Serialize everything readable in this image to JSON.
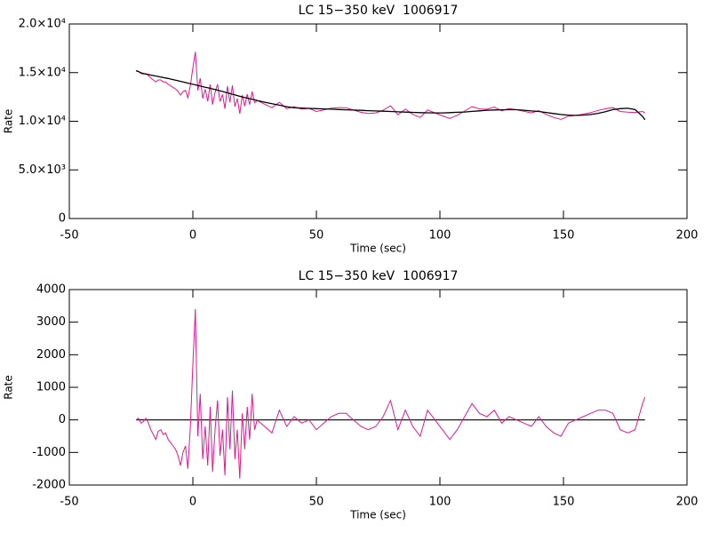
{
  "chart_data": [
    {
      "type": "line",
      "title": "LC 15−350 keV  1006917",
      "xlabel": "Time (sec)",
      "ylabel": "Rate",
      "xlim": [
        -50,
        200
      ],
      "xticks": [
        -50,
        0,
        50,
        100,
        150,
        200
      ],
      "ylim": [
        0,
        20000
      ],
      "yticks": [
        0,
        {
          "value": 5000,
          "label": "5.0×10³"
        },
        {
          "value": 10000,
          "label": "1.0×10⁴"
        },
        {
          "value": 15000,
          "label": "1.5×10⁴"
        },
        {
          "value": 20000,
          "label": "2.0×10⁴"
        }
      ],
      "x": [
        -23,
        -22,
        -21,
        -20,
        -19,
        -18,
        -17,
        -16,
        -15,
        -14,
        -13,
        -12,
        -11,
        -10,
        -9,
        -8,
        -7,
        -6,
        -5,
        -4,
        -3,
        -2,
        -1,
        0,
        1,
        2,
        3,
        4,
        5,
        6,
        7,
        8,
        9,
        10,
        11,
        12,
        13,
        14,
        15,
        16,
        17,
        18,
        19,
        20,
        21,
        22,
        23,
        24,
        25,
        26,
        29,
        32,
        35,
        38,
        41,
        44,
        47,
        50,
        53,
        56,
        59,
        62,
        65,
        68,
        71,
        74,
        77,
        80,
        83,
        86,
        89,
        92,
        95,
        98,
        101,
        104,
        107,
        110,
        113,
        116,
        119,
        122,
        125,
        128,
        131,
        134,
        137,
        140,
        143,
        146,
        149,
        152,
        155,
        158,
        161,
        164,
        167,
        170,
        173,
        176,
        179,
        182,
        183
      ],
      "series": [
        {
          "color": "#e8168c",
          "values": [
            15200,
            15150,
            14900,
            14850,
            14900,
            14700,
            14450,
            14250,
            14050,
            14250,
            14250,
            14050,
            14050,
            13800,
            13640,
            13480,
            13320,
            13060,
            12700,
            13040,
            13180,
            12420,
            13660,
            15500,
            17140,
            13180,
            14420,
            12360,
            13300,
            12040,
            13780,
            11720,
            12960,
            13800,
            12030,
            12760,
            11290,
            13620,
            11950,
            13680,
            11510,
            12340,
            10770,
            12700,
            11540,
            12780,
            11720,
            13060,
            11900,
            12140,
            11760,
            11400,
            11950,
            11300,
            11490,
            11250,
            11320,
            11000,
            11170,
            11340,
            11410,
            11380,
            11150,
            10920,
            10790,
            10860,
            11130,
            11600,
            10670,
            11240,
            10710,
            10390,
            11170,
            10860,
            10560,
            10290,
            10620,
            11050,
            11510,
            11270,
            11230,
            11460,
            11080,
            11300,
            11190,
            11030,
            10860,
            11100,
            10700,
            10390,
            10190,
            10530,
            10600,
            10730,
            10890,
            11110,
            11290,
            11400,
            11000,
            10930,
            10900,
            11000,
            10850
          ]
        },
        {
          "color": "#000000",
          "values": [
            15200,
            15100,
            15000,
            14900,
            14850,
            14800,
            14750,
            14700,
            14650,
            14600,
            14550,
            14500,
            14450,
            14400,
            14340,
            14280,
            14220,
            14160,
            14100,
            14040,
            13980,
            13920,
            13860,
            13800,
            13740,
            13680,
            13620,
            13560,
            13500,
            13440,
            13380,
            13320,
            13260,
            13200,
            13130,
            13060,
            12990,
            12920,
            12850,
            12780,
            12710,
            12640,
            12570,
            12500,
            12440,
            12380,
            12320,
            12260,
            12200,
            12140,
            11960,
            11800,
            11650,
            11500,
            11390,
            11350,
            11320,
            11300,
            11270,
            11240,
            11210,
            11180,
            11150,
            11120,
            11090,
            11060,
            11030,
            11000,
            10970,
            10940,
            10910,
            10890,
            10870,
            10860,
            10860,
            10890,
            10920,
            10950,
            11010,
            11070,
            11130,
            11160,
            11180,
            11200,
            11190,
            11130,
            11060,
            11000,
            10900,
            10790,
            10690,
            10630,
            10600,
            10630,
            10690,
            10810,
            10990,
            11200,
            11300,
            11330,
            11200,
            10500,
            10150
          ]
        }
      ]
    },
    {
      "type": "line",
      "title": "LC 15−350 keV  1006917",
      "xlabel": "Time (sec)",
      "ylabel": "Rate",
      "xlim": [
        -50,
        200
      ],
      "xticks": [
        -50,
        0,
        50,
        100,
        150,
        200
      ],
      "ylim": [
        -2000,
        4000
      ],
      "yticks": [
        -2000,
        -1000,
        0,
        1000,
        2000,
        3000,
        4000
      ],
      "x": [
        -23,
        -22,
        -21,
        -20,
        -19,
        -18,
        -17,
        -16,
        -15,
        -14,
        -13,
        -12,
        -11,
        -10,
        -9,
        -8,
        -7,
        -6,
        -5,
        -4,
        -3,
        -2,
        -1,
        0,
        1,
        2,
        3,
        4,
        5,
        6,
        7,
        8,
        9,
        10,
        11,
        12,
        13,
        14,
        15,
        16,
        17,
        18,
        19,
        20,
        21,
        22,
        23,
        24,
        25,
        26,
        29,
        32,
        35,
        38,
        41,
        44,
        47,
        50,
        53,
        56,
        59,
        62,
        65,
        68,
        71,
        74,
        77,
        80,
        83,
        86,
        89,
        92,
        95,
        98,
        101,
        104,
        107,
        110,
        113,
        116,
        119,
        122,
        125,
        128,
        131,
        134,
        137,
        140,
        143,
        146,
        149,
        152,
        155,
        158,
        161,
        164,
        167,
        170,
        173,
        176,
        179,
        182,
        183
      ],
      "series": [
        {
          "color": "#e8168c",
          "values": [
            0,
            50,
            -100,
            -50,
            50,
            -100,
            -300,
            -450,
            -600,
            -350,
            -300,
            -450,
            -400,
            -600,
            -700,
            -800,
            -900,
            -1100,
            -1400,
            -1000,
            -800,
            -1500,
            -200,
            1700,
            3400,
            -500,
            800,
            -1200,
            -200,
            -1400,
            400,
            -1600,
            -300,
            600,
            -1100,
            -300,
            -1700,
            700,
            -900,
            900,
            -1200,
            -300,
            -1800,
            200,
            -900,
            400,
            -600,
            800,
            -300,
            0,
            -200,
            -400,
            300,
            -200,
            100,
            -100,
            0,
            -300,
            -100,
            100,
            200,
            200,
            0,
            -200,
            -300,
            -200,
            100,
            600,
            -300,
            300,
            -200,
            -500,
            300,
            0,
            -300,
            -600,
            -300,
            100,
            500,
            200,
            100,
            300,
            -100,
            100,
            0,
            -100,
            -200,
            100,
            -200,
            -400,
            -500,
            -100,
            0,
            100,
            200,
            300,
            300,
            200,
            -300,
            -400,
            -300,
            500,
            700
          ]
        }
      ],
      "reference_line": {
        "y": 0,
        "x": [
          -23,
          183
        ],
        "color": "#000000"
      }
    }
  ]
}
